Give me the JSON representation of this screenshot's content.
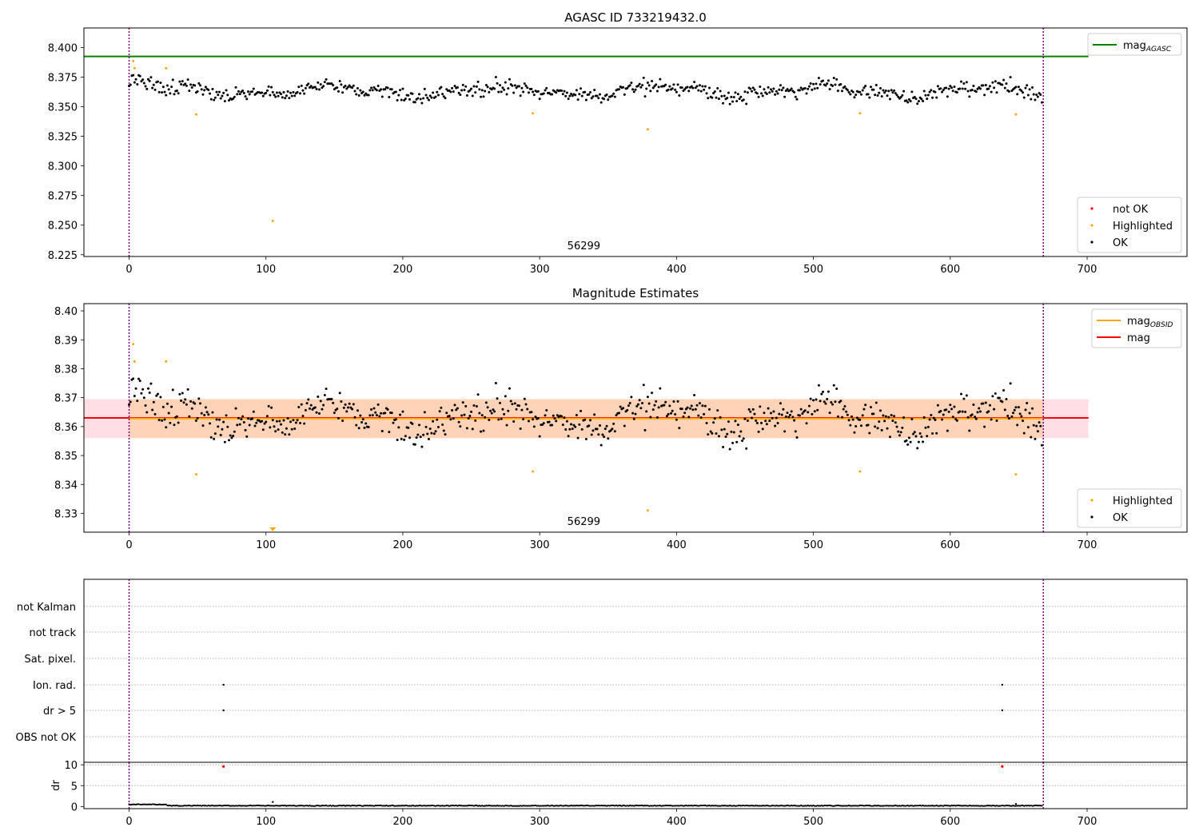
{
  "figure": {
    "title_top": "AGASC ID 733219432.0",
    "title_middle": "Magnitude Estimates",
    "obsid_label": "56299"
  },
  "chart_data": [
    {
      "type": "scatter",
      "name": "top",
      "title": "AGASC ID 733219432.0",
      "xlim": [
        -33,
        773
      ],
      "ylim": [
        8.2235,
        8.4165
      ],
      "xticks": [
        0,
        100,
        200,
        300,
        400,
        500,
        600,
        700
      ],
      "yticks": [
        8.225,
        8.25,
        8.275,
        8.3,
        8.325,
        8.35,
        8.375,
        8.4
      ],
      "ytick_decimals": 3,
      "vlines": [
        0,
        668
      ],
      "hlines": [
        {
          "y": 8.3925,
          "x0": -33,
          "x1": 701,
          "color": "#008000"
        }
      ],
      "text_annotation": {
        "text": "56299",
        "x": 334
      },
      "legends": [
        {
          "position": "top-right",
          "entries": [
            {
              "label": "mag",
              "sub": "AGASC",
              "kind": "line",
              "color": "#008000"
            }
          ]
        },
        {
          "position": "bottom-right",
          "entries": [
            {
              "label": "not OK",
              "kind": "dot",
              "color": "#ff0000"
            },
            {
              "label": "Highlighted",
              "kind": "dot",
              "color": "#ffa500"
            },
            {
              "label": "OK",
              "kind": "dot",
              "color": "#000000"
            }
          ]
        }
      ],
      "series": [
        {
          "name": "Highlighted",
          "color": "#ffa500",
          "x": [
            3,
            4,
            27,
            49,
            105,
            295,
            379,
            534,
            648
          ],
          "y": [
            8.3885,
            8.3825,
            8.3825,
            8.3435,
            8.2535,
            8.3445,
            8.331,
            8.3445,
            8.3435
          ]
        },
        {
          "name": "OK",
          "color": "#000000",
          "baseline": 8.363,
          "noise": 0.0056,
          "n": 668,
          "seed": 733219432,
          "y_min": 8.346,
          "y_max": 8.3795
        }
      ]
    },
    {
      "type": "scatter",
      "name": "middle",
      "title": "Magnitude Estimates",
      "xlim": [
        -33,
        773
      ],
      "ylim": [
        8.3235,
        8.4025
      ],
      "xticks": [
        0,
        100,
        200,
        300,
        400,
        500,
        600,
        700
      ],
      "yticks": [
        8.33,
        8.34,
        8.35,
        8.36,
        8.37,
        8.38,
        8.39,
        8.4
      ],
      "ytick_decimals": 2,
      "vlines": [
        0,
        668
      ],
      "hlines": [
        {
          "y": 8.363,
          "x0": -33,
          "x1": 701,
          "color": "#ff0000"
        },
        {
          "y": 8.3628,
          "x0": 0,
          "x1": 668,
          "color": "#ffa500"
        }
      ],
      "bands": [
        {
          "y0": 8.356,
          "y1": 8.3695,
          "x0": -33,
          "x1": 701,
          "color": "#ffc0cb",
          "opacity": 0.5
        },
        {
          "y0": 8.356,
          "y1": 8.3695,
          "x0": 0,
          "x1": 668,
          "color": "#ffa500",
          "opacity": 0.2
        }
      ],
      "text_annotation": {
        "text": "56299",
        "x": 334
      },
      "legends": [
        {
          "position": "top-right",
          "entries": [
            {
              "label": "mag",
              "sub": "OBSID",
              "kind": "line",
              "color": "#ffa500"
            },
            {
              "label": "mag",
              "kind": "line",
              "color": "#ff0000"
            }
          ]
        },
        {
          "position": "bottom-right",
          "entries": [
            {
              "label": "Highlighted",
              "kind": "dot",
              "color": "#ffa500"
            },
            {
              "label": "OK",
              "kind": "dot",
              "color": "#000000"
            }
          ]
        }
      ],
      "series": [
        {
          "name": "Highlighted",
          "color": "#ffa500",
          "x": [
            3,
            4,
            27,
            49,
            295,
            379,
            534,
            648
          ],
          "y": [
            8.3885,
            8.3825,
            8.3825,
            8.3435,
            8.3445,
            8.331,
            8.3445,
            8.3435
          ]
        },
        {
          "name": "OK",
          "color": "#000000",
          "same_as": "top"
        }
      ],
      "offscale_marker": {
        "x": 105,
        "color": "#ffa500"
      }
    },
    {
      "type": "scatter",
      "name": "flags",
      "xlim": [
        -33,
        773
      ],
      "vlines": [
        0,
        668
      ],
      "categories": [
        "not Kalman",
        "not track",
        "Sat. pixel.",
        "Ion. rad.",
        "dr > 5",
        "OBS not OK"
      ],
      "points": [
        {
          "category": "Ion. rad.",
          "x": [
            69,
            638
          ]
        },
        {
          "category": "dr > 5",
          "x": [
            69,
            638
          ]
        }
      ]
    },
    {
      "type": "scatter",
      "name": "dr",
      "ylabel": "dr",
      "xlim": [
        -33,
        773
      ],
      "ylim": [
        -0.5,
        10.6
      ],
      "xticks": [
        0,
        100,
        200,
        300,
        400,
        500,
        600,
        700
      ],
      "yticks": [
        0,
        5,
        10
      ],
      "vlines": [
        0,
        668
      ],
      "series": [
        {
          "name": "dr > 5",
          "color": "#ff0000",
          "x": [
            69,
            638
          ],
          "y": [
            9.6,
            9.6
          ]
        },
        {
          "name": "dr",
          "color": "#000000",
          "n": 668,
          "typical": 0.2,
          "early_x_max": 27,
          "early_value": 0.5,
          "outliers": [
            {
              "x": 105,
              "y": 1.1
            },
            {
              "x": 648,
              "y": 0.6
            }
          ]
        }
      ]
    }
  ]
}
